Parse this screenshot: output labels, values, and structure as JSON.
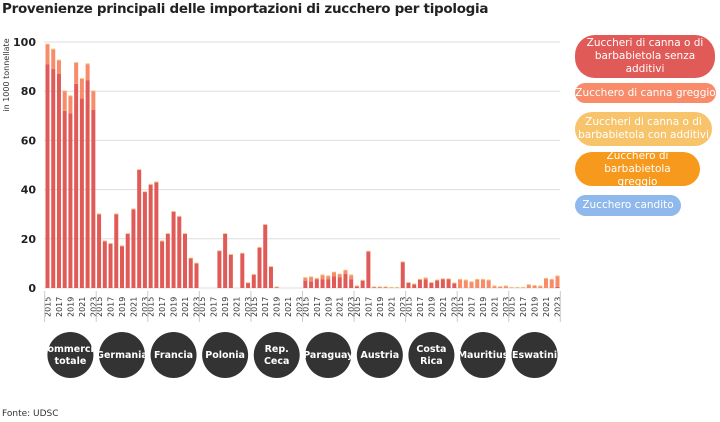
{
  "chart_data": {
    "type": "bar",
    "stacked": true,
    "title": "Provenienze principali delle importazioni di zucchero per tipologia",
    "ylabel": "in 1000 tonnellate",
    "ylim": [
      0,
      100
    ],
    "yticks": [
      0,
      20,
      40,
      60,
      80,
      100
    ],
    "grid": true,
    "legend_position": "right",
    "years": [
      "2015",
      "2016",
      "2017",
      "2018",
      "2019",
      "2020",
      "2021",
      "2022",
      "2023"
    ],
    "year_tick_labels": [
      "2015",
      "2017",
      "2019",
      "2021",
      "2023"
    ],
    "series": [
      {
        "name": "Zuccheri di canna o di barbabietola senza additivi",
        "color": "#e05a57"
      },
      {
        "name": "Zucchero di canna greggio",
        "color": "#f78b6a"
      },
      {
        "name": "Zuccheri di canna o di barbabietola con additivi",
        "color": "#f7c46b"
      },
      {
        "name": "Zucchero di barbabietola greggio",
        "color": "#f7991c"
      },
      {
        "name": "Zucchero candito",
        "color": "#8fb8ec"
      }
    ],
    "groups": [
      {
        "label": "Commercio totale",
        "values": [
          [
            91,
            89,
            87,
            72,
            71,
            83,
            77,
            84.5,
            72.5
          ],
          [
            8,
            8,
            5.5,
            8,
            7,
            8.5,
            8,
            6.5,
            7.5
          ]
        ]
      },
      {
        "label": "Germania",
        "values": [
          [
            30,
            19,
            18,
            30,
            17,
            22,
            32,
            48,
            39
          ],
          [
            0,
            0,
            0,
            0,
            0,
            0,
            0,
            0,
            0
          ]
        ]
      },
      {
        "label": "Francia",
        "values": [
          [
            42,
            43,
            19,
            22,
            31,
            29,
            22,
            12,
            10
          ],
          [
            0,
            0,
            0,
            0,
            0,
            0,
            0,
            0,
            0
          ]
        ]
      },
      {
        "label": "Polonia",
        "values": [
          [
            0,
            0,
            0,
            15,
            22,
            13.5,
            0,
            14,
            2
          ],
          [
            0,
            0,
            0,
            0,
            0,
            0,
            0,
            0,
            0
          ]
        ]
      },
      {
        "label": "Rep. Ceca",
        "values": [
          [
            5.4,
            16.4,
            25.7,
            8.6,
            0.3,
            0,
            0,
            0,
            0
          ],
          [
            0,
            0,
            0,
            0,
            0,
            0,
            0,
            0,
            0
          ]
        ]
      },
      {
        "label": "Paraguay",
        "values": [
          [
            3,
            2.7,
            3.6,
            3.6,
            3.6,
            4.8,
            4.4,
            5.8,
            3.6
          ],
          [
            1.1,
            1.7,
            0.2,
            1.6,
            1.2,
            1.5,
            1.1,
            1.3,
            1.6
          ]
        ]
      },
      {
        "label": "Austria",
        "values": [
          [
            0.7,
            3,
            14.8,
            0.3,
            0.3,
            0.3,
            0.1,
            0.1,
            10.5
          ],
          [
            0,
            0,
            0,
            0,
            0,
            0,
            0,
            0,
            0
          ]
        ]
      },
      {
        "label": "Costa Rica",
        "values": [
          [
            2.1,
            1.5,
            3.4,
            3.5,
            2.1,
            3.1,
            3.6,
            3.6,
            1.9
          ],
          [
            0,
            0,
            0,
            0.5,
            0,
            0,
            0,
            0,
            0
          ]
        ]
      },
      {
        "label": "Mauritius",
        "values": [
          [
            0,
            0,
            0,
            0,
            0,
            0,
            0,
            0,
            0
          ],
          [
            3.4,
            3.1,
            2.4,
            3.4,
            3.4,
            3.1,
            0.7,
            0.4,
            0.7
          ]
        ]
      },
      {
        "label": "Eswatini",
        "values": [
          [
            0,
            0,
            0,
            0,
            0,
            0,
            0,
            0,
            0.5
          ],
          [
            0.1,
            0.1,
            0.1,
            1.2,
            0.9,
            0.7,
            3.8,
            3.4,
            4.3
          ]
        ]
      }
    ]
  },
  "source": "Fonte: UDSC"
}
